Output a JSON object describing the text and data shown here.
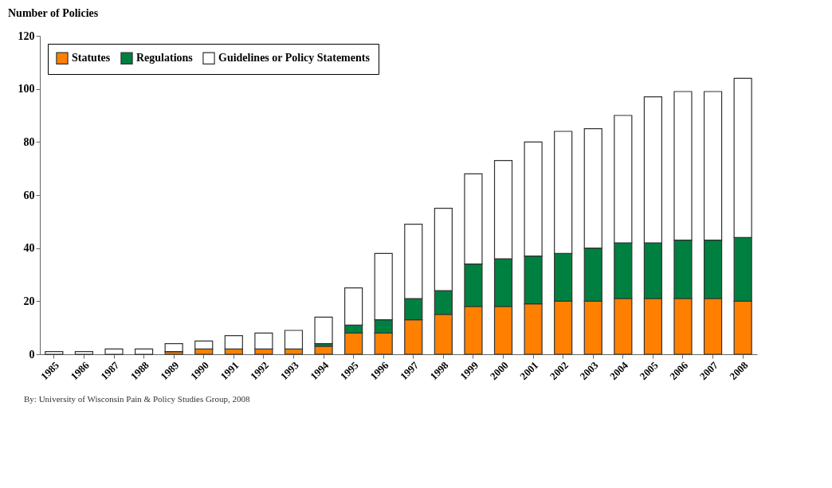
{
  "chart_data": {
    "type": "bar",
    "stacked": true,
    "ylabel": "Number of Policies",
    "categories": [
      "1985",
      "1986",
      "1987",
      "1988",
      "1989",
      "1990",
      "1991",
      "1992",
      "1993",
      "1994",
      "1995",
      "1996",
      "1997",
      "1998",
      "1999",
      "2000",
      "2001",
      "2002",
      "2003",
      "2004",
      "2005",
      "2006",
      "2007",
      "2008"
    ],
    "series": [
      {
        "name": "Statutes",
        "color": "#ff8000",
        "values": [
          0,
          0,
          0,
          0,
          1,
          2,
          2,
          2,
          2,
          3,
          8,
          8,
          13,
          15,
          18,
          18,
          19,
          20,
          20,
          21,
          21,
          21,
          21,
          20
        ]
      },
      {
        "name": "Regulations",
        "color": "#008040",
        "values": [
          0,
          0,
          0,
          0,
          0,
          0,
          0,
          0,
          0,
          1,
          3,
          5,
          8,
          9,
          16,
          18,
          18,
          18,
          20,
          21,
          21,
          22,
          22,
          24
        ]
      },
      {
        "name": "Guidelines or Policy Statements",
        "color": "#ffffff",
        "values": [
          1,
          1,
          2,
          2,
          3,
          3,
          5,
          6,
          7,
          10,
          14,
          25,
          28,
          31,
          34,
          37,
          43,
          46,
          45,
          48,
          55,
          56,
          56,
          60
        ]
      }
    ],
    "ylim": [
      0,
      120
    ],
    "yticks": [
      0,
      20,
      40,
      60,
      80,
      100,
      120
    ],
    "grid": false,
    "legend": "top left",
    "annotations": [
      "By: University of Wisconsin Pain & Policy Studies Group, 2008"
    ]
  }
}
